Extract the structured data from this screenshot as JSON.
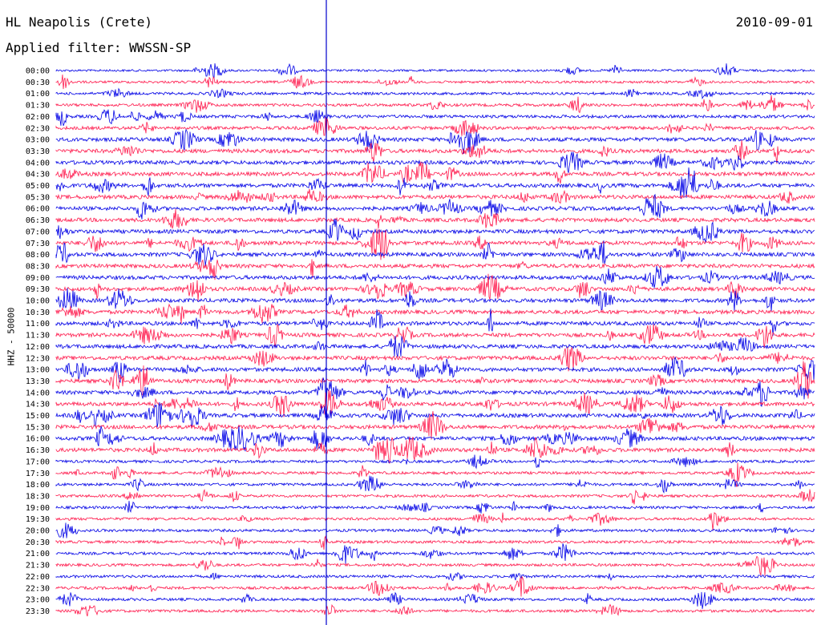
{
  "header": {
    "station": "HL Neapolis (Crete)",
    "date": "2010-09-01",
    "filter_text": "Applied filter: WWSSN-SP"
  },
  "chart_data": {
    "type": "line",
    "title": "HL Neapolis (Crete)",
    "subtitle": "Applied filter: WWSSN-SP",
    "ylabel": "HHZ - 50000",
    "date": "2010-09-01",
    "row_labels": [
      "00:00",
      "00:30",
      "01:00",
      "01:30",
      "02:00",
      "02:30",
      "03:00",
      "03:30",
      "04:00",
      "04:30",
      "05:00",
      "05:30",
      "06:00",
      "06:30",
      "07:00",
      "07:30",
      "08:00",
      "08:30",
      "09:00",
      "09:30",
      "10:00",
      "10:30",
      "11:00",
      "11:30",
      "12:00",
      "12:30",
      "13:00",
      "13:30",
      "14:00",
      "14:30",
      "15:00",
      "15:30",
      "16:00",
      "16:30",
      "17:00",
      "17:30",
      "18:00",
      "18:30",
      "19:00",
      "19:30",
      "20:00",
      "20:30",
      "21:00",
      "21:30",
      "22:00",
      "22:30",
      "23:00",
      "23:30"
    ],
    "trace_colors": [
      "#0000e6",
      "#ff1a4d"
    ],
    "marker_color": "#0000cc",
    "grid": false
  }
}
